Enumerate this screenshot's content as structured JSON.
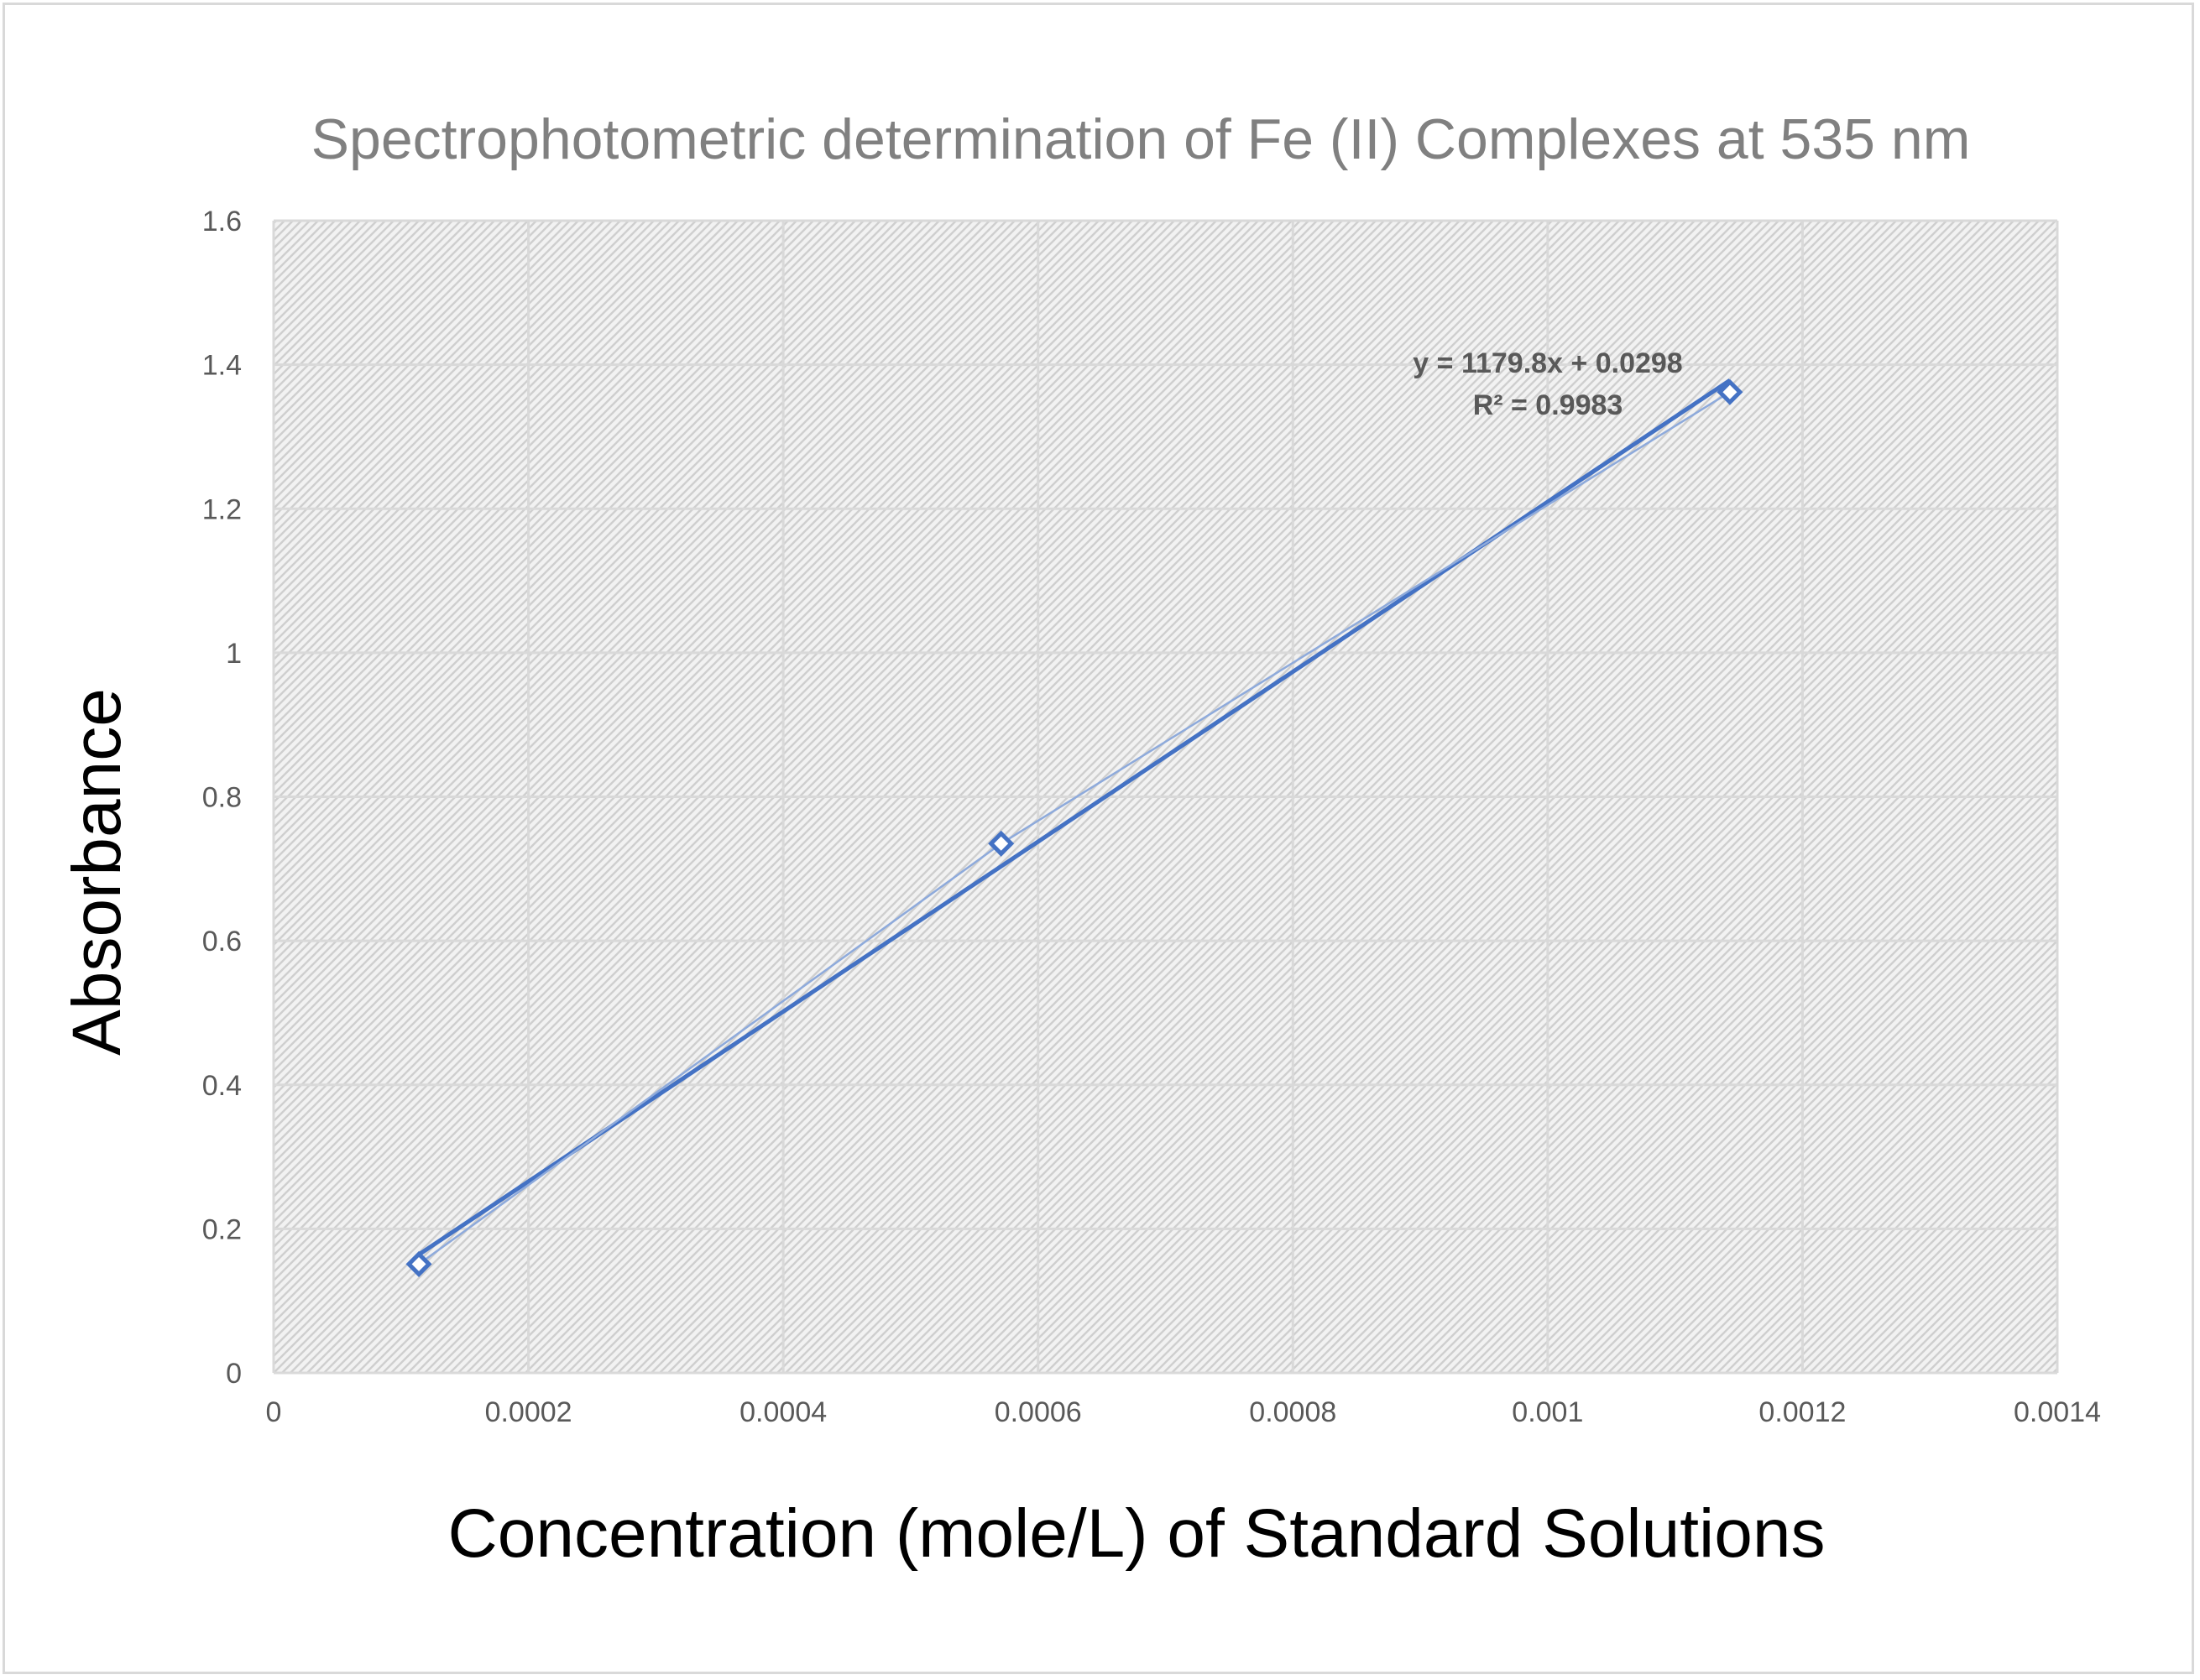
{
  "chart_data": {
    "type": "scatter",
    "title": "Spectrophotometric determination of Fe (II) Complexes at 535 nm",
    "xlabel": "Concentration (mole/L) of Standard Solutions",
    "ylabel": "Absorbance",
    "xlim": [
      0,
      0.0014
    ],
    "ylim": [
      0,
      1.6
    ],
    "x_ticks": [
      "0",
      "0.0002",
      "0.0004",
      "0.0006",
      "0.0008",
      "0.001",
      "0.0012",
      "0.0014"
    ],
    "y_ticks": [
      "0",
      "0.2",
      "0.4",
      "0.6",
      "0.8",
      "1",
      "1.2",
      "1.4",
      "1.6"
    ],
    "grid": true,
    "legend": "none",
    "series": [
      {
        "x": [
          0.000114,
          0.000571,
          0.001143
        ],
        "y": [
          0.151,
          0.735,
          1.362
        ],
        "marker": "diamond-open",
        "connected": true,
        "color": "#4472c4"
      }
    ],
    "trendline": {
      "type": "linear",
      "slope": 1179.8,
      "intercept": 0.0298,
      "equation_label": "y = 1179.8x + 0.0298",
      "r2_label": "R² = 0.9983",
      "color": "#4472c4"
    }
  }
}
